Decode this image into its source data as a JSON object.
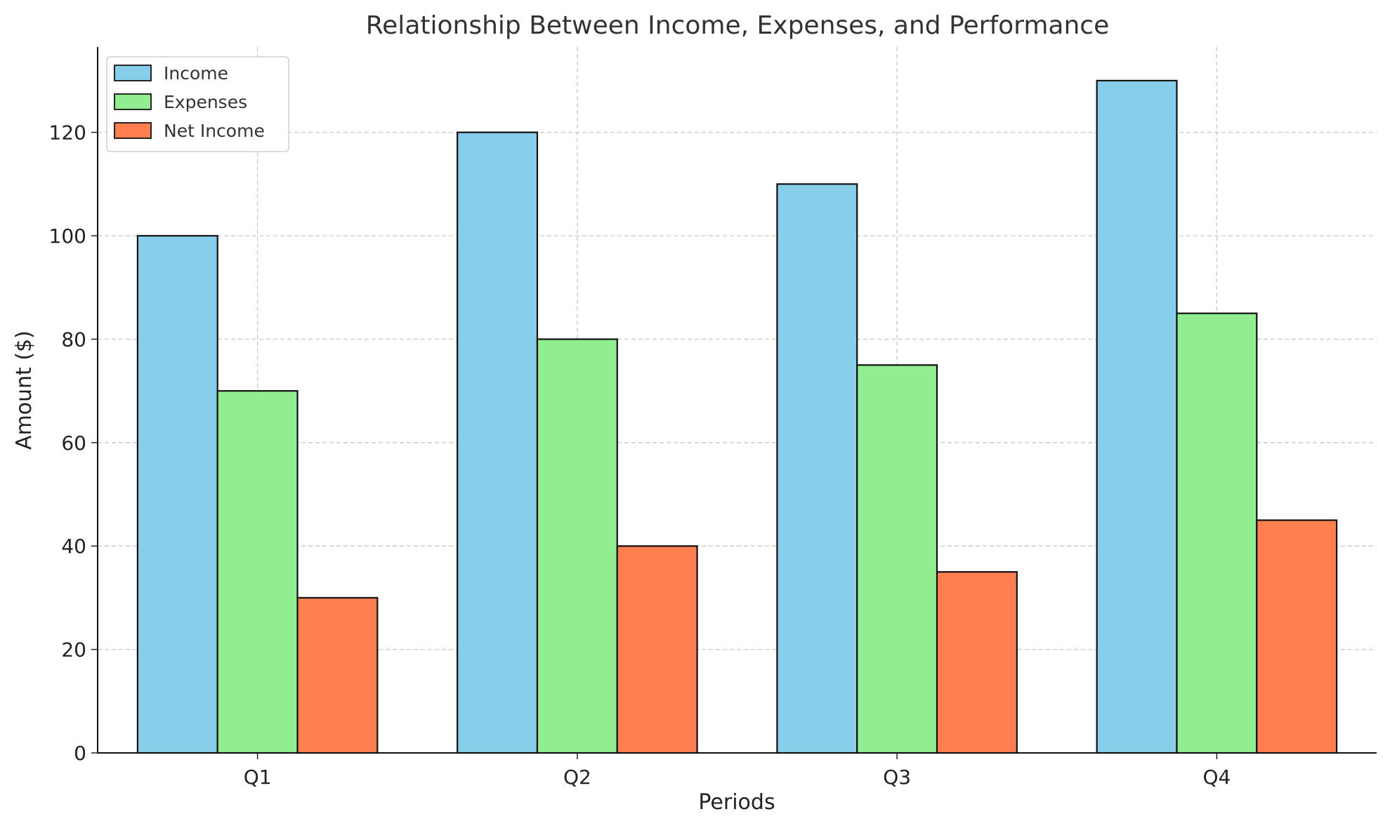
{
  "chart_data": {
    "type": "bar",
    "title": "Relationship Between Income, Expenses, and Performance",
    "xlabel": "Periods",
    "ylabel": "Amount ($)",
    "categories": [
      "Q1",
      "Q2",
      "Q3",
      "Q4"
    ],
    "series": [
      {
        "name": "Income",
        "values": [
          100,
          120,
          110,
          130
        ],
        "color": "#87CEEB"
      },
      {
        "name": "Expenses",
        "values": [
          70,
          80,
          75,
          85
        ],
        "color": "#90EE90"
      },
      {
        "name": "Net Income",
        "values": [
          30,
          40,
          35,
          45
        ],
        "color": "#FF7F50"
      }
    ],
    "ylim": [
      0,
      136.5
    ],
    "yticks": [
      0,
      20,
      40,
      60,
      80,
      100,
      120
    ],
    "grid": true,
    "legend_position": "top-left"
  }
}
